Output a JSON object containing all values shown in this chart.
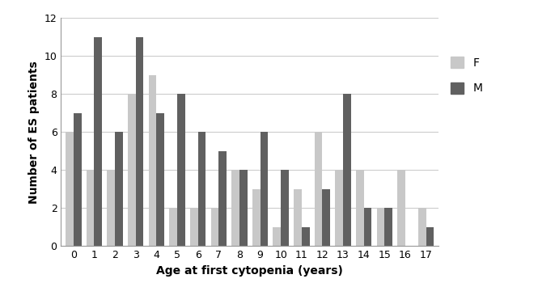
{
  "ages": [
    0,
    1,
    2,
    3,
    4,
    5,
    6,
    7,
    8,
    9,
    10,
    11,
    12,
    13,
    14,
    15,
    16,
    17
  ],
  "F_values": [
    6,
    4,
    4,
    8,
    9,
    2,
    2,
    2,
    4,
    3,
    1,
    3,
    6,
    4,
    4,
    2,
    4,
    2
  ],
  "M_values": [
    7,
    11,
    6,
    11,
    7,
    8,
    6,
    5,
    4,
    6,
    4,
    1,
    3,
    8,
    2,
    2,
    0,
    1
  ],
  "F_color": "#C8C8C8",
  "M_color": "#606060",
  "xlabel": "Age at first cytopenia (years)",
  "ylabel": "Number of ES patients",
  "ylim": [
    0,
    12
  ],
  "yticks": [
    0,
    2,
    4,
    6,
    8,
    10,
    12
  ],
  "legend_F": "F",
  "legend_M": "M",
  "bar_width": 0.38,
  "label_fontsize": 10,
  "tick_fontsize": 9,
  "legend_fontsize": 10
}
